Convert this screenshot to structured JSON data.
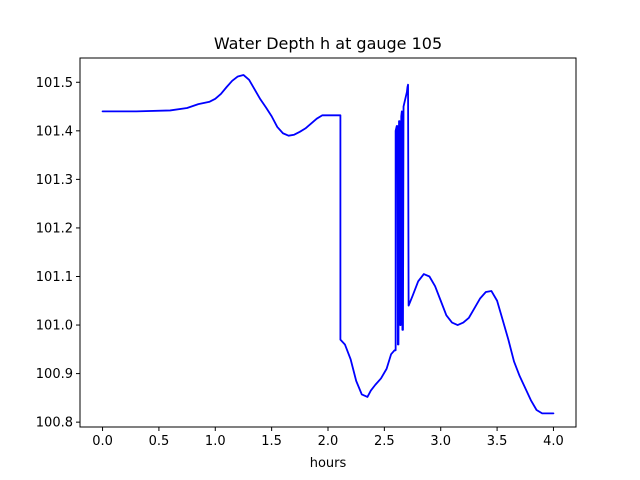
{
  "chart_data": {
    "type": "line",
    "title": "Water Depth h at gauge 105",
    "xlabel": "hours",
    "ylabel": "",
    "xlim": [
      -0.2,
      4.2
    ],
    "ylim": [
      100.79,
      101.55
    ],
    "grid": false,
    "xticks": [
      0.0,
      0.5,
      1.0,
      1.5,
      2.0,
      2.5,
      3.0,
      3.5,
      4.0
    ],
    "xtick_labels": [
      "0.0",
      "0.5",
      "1.0",
      "1.5",
      "2.0",
      "2.5",
      "3.0",
      "3.5",
      "4.0"
    ],
    "yticks": [
      100.8,
      100.9,
      101.0,
      101.1,
      101.2,
      101.3,
      101.4,
      101.5
    ],
    "ytick_labels": [
      "100.8",
      "100.9",
      "101.0",
      "101.1",
      "101.2",
      "101.3",
      "101.4",
      "101.5"
    ],
    "series": [
      {
        "color": "#0000ff",
        "x": [
          0.0,
          0.3,
          0.6,
          0.75,
          0.85,
          0.95,
          1.0,
          1.05,
          1.1,
          1.15,
          1.2,
          1.25,
          1.3,
          1.35,
          1.4,
          1.45,
          1.5,
          1.55,
          1.6,
          1.65,
          1.7,
          1.75,
          1.8,
          1.85,
          1.9,
          1.95,
          2.0,
          2.05,
          2.08,
          2.11,
          2.11,
          2.15,
          2.2,
          2.25,
          2.3,
          2.35,
          2.38,
          2.42,
          2.47,
          2.52,
          2.56,
          2.59,
          2.6,
          2.6,
          2.61,
          2.615,
          2.62,
          2.625,
          2.63,
          2.635,
          2.64,
          2.645,
          2.65,
          2.655,
          2.66,
          2.665,
          2.67,
          2.68,
          2.69,
          2.7,
          2.705,
          2.71,
          2.715,
          2.75,
          2.8,
          2.85,
          2.9,
          2.95,
          3.0,
          3.05,
          3.1,
          3.15,
          3.2,
          3.25,
          3.3,
          3.35,
          3.4,
          3.45,
          3.5,
          3.55,
          3.6,
          3.65,
          3.7,
          3.75,
          3.8,
          3.85,
          3.9,
          3.95,
          4.0
        ],
        "y": [
          101.44,
          101.44,
          101.442,
          101.447,
          101.455,
          101.46,
          101.466,
          101.476,
          101.49,
          101.503,
          101.512,
          101.515,
          101.505,
          101.485,
          101.465,
          101.448,
          101.43,
          101.408,
          101.395,
          101.39,
          101.392,
          101.398,
          101.405,
          101.415,
          101.425,
          101.432,
          101.432,
          101.432,
          101.432,
          101.432,
          100.97,
          100.96,
          100.93,
          100.885,
          100.857,
          100.852,
          100.865,
          100.877,
          100.89,
          100.91,
          100.94,
          100.948,
          100.948,
          101.4,
          101.41,
          101.41,
          100.96,
          100.96,
          101.42,
          101.42,
          101.0,
          101.0,
          101.43,
          101.44,
          100.99,
          100.99,
          101.45,
          101.46,
          101.47,
          101.48,
          101.49,
          101.495,
          101.04,
          101.06,
          101.09,
          101.105,
          101.1,
          101.08,
          101.05,
          101.02,
          101.005,
          101.0,
          101.005,
          101.015,
          101.035,
          101.055,
          101.068,
          101.07,
          101.05,
          101.01,
          100.97,
          100.925,
          100.895,
          100.87,
          100.845,
          100.825,
          100.818,
          100.818,
          100.818
        ]
      }
    ]
  }
}
